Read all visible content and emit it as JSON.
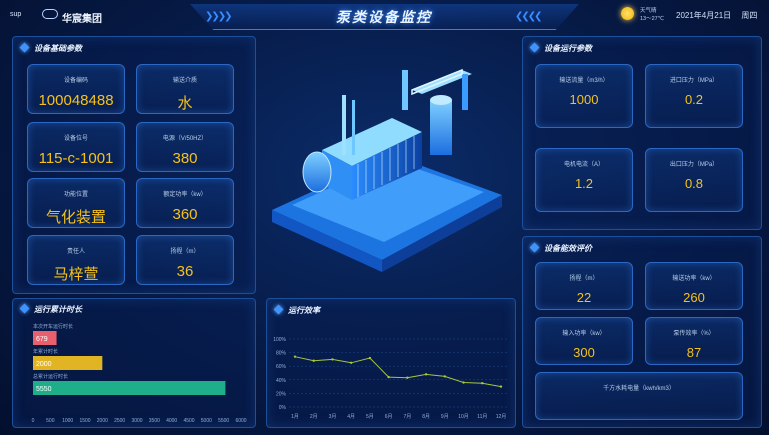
{
  "header": {
    "logo_text": "sup",
    "brand": "华宸集团",
    "title": "泵类设备监控",
    "weather_label": "天气晴",
    "weather_temp": "13～27℃",
    "date": "2021年4月21日",
    "weekday": "周四"
  },
  "basic": {
    "title": "设备基础参数",
    "items": [
      {
        "label": "设备编码",
        "value": "100048488"
      },
      {
        "label": "输送介质",
        "value": "水"
      },
      {
        "label": "设备位号",
        "value": "115-c-1001"
      },
      {
        "label": "电源（V/50HZ）",
        "value": "380"
      },
      {
        "label": "功能位置",
        "value": "气化装置"
      },
      {
        "label": "额定功率（kw）",
        "value": "360"
      },
      {
        "label": "责任人",
        "value": "马梓萱"
      },
      {
        "label": "扬程（m）",
        "value": "36"
      }
    ]
  },
  "running": {
    "title": "设备运行参数",
    "items": [
      {
        "label": "输送流量（m3/h）",
        "value": "1000"
      },
      {
        "label": "进口压力（MPa）",
        "value": "0.2"
      },
      {
        "label": "电机电流（A）",
        "value": "1.2"
      },
      {
        "label": "出口压力（MPa）",
        "value": "0.8"
      }
    ]
  },
  "efficiency": {
    "title": "设备能效评价",
    "items": [
      {
        "label": "扬程（m）",
        "value": "22"
      },
      {
        "label": "输送功率（kw）",
        "value": "260"
      },
      {
        "label": "输入功率（kw）",
        "value": "300"
      },
      {
        "label": "泵传效率（%）",
        "value": "87"
      },
      {
        "label": "千方水耗电量（kwh/km3）",
        "value": ""
      }
    ]
  },
  "runtime": {
    "title": "运行累计时长",
    "chart_data": {
      "type": "bar",
      "orientation": "horizontal",
      "categories": [
        "本次开车运行时长",
        "年累计时长",
        "总累计运行时长"
      ],
      "values": [
        679,
        2000,
        5550
      ],
      "bar_colors": [
        "#e8606d",
        "#e0b422",
        "#1fae8a"
      ],
      "x_ticks": [
        "0",
        "500",
        "1000",
        "1500",
        "2000",
        "2500",
        "3000",
        "3500",
        "4000",
        "4500",
        "5000",
        "5500",
        "6000"
      ],
      "xlim": [
        0,
        6000
      ]
    }
  },
  "efficiency_chart": {
    "title": "运行效率",
    "chart_data": {
      "type": "line",
      "x": [
        "1月",
        "2月",
        "3月",
        "4月",
        "5月",
        "6月",
        "7月",
        "8月",
        "9月",
        "10月",
        "11月",
        "12月"
      ],
      "values": [
        74,
        68,
        70,
        65,
        72,
        44,
        43,
        48,
        45,
        36,
        35,
        30
      ],
      "y_ticks": [
        "100%",
        "80%",
        "60%",
        "40%",
        "20%",
        "0%"
      ],
      "ylim": [
        0,
        100
      ],
      "line_color": "#a7c83a"
    }
  }
}
